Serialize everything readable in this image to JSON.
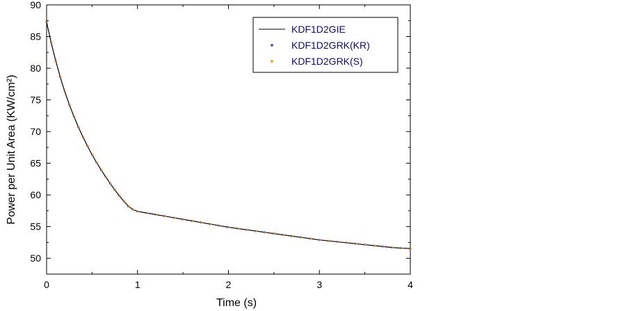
{
  "chart_data": {
    "type": "line",
    "title": "",
    "xlabel": "Time (s)",
    "ylabel": "Power per Unit Area  (KW/cm²)",
    "xlim": [
      0,
      4
    ],
    "ylim": [
      47.5,
      90
    ],
    "xticks": [
      0,
      1,
      2,
      3,
      4
    ],
    "yticks": [
      50,
      55,
      60,
      65,
      70,
      75,
      80,
      85,
      90
    ],
    "xtick_labels": [
      "0",
      "1",
      "2",
      "3",
      "4"
    ],
    "ytick_labels": [
      "50",
      "55",
      "60",
      "65",
      "70",
      "75",
      "80",
      "85",
      "90"
    ],
    "grid": false,
    "legend_position": "top-right",
    "x": [
      0,
      0.05,
      0.1,
      0.15,
      0.2,
      0.25,
      0.3,
      0.35,
      0.4,
      0.45,
      0.5,
      0.55,
      0.6,
      0.65,
      0.7,
      0.75,
      0.8,
      0.85,
      0.9,
      0.95,
      1.0,
      1.1,
      1.2,
      1.3,
      1.4,
      1.5,
      1.6,
      1.7,
      1.8,
      1.9,
      2.0,
      2.1,
      2.2,
      2.3,
      2.4,
      2.5,
      2.6,
      2.7,
      2.8,
      2.9,
      3.0,
      3.1,
      3.2,
      3.3,
      3.4,
      3.5,
      3.6,
      3.7,
      3.8,
      3.9,
      4.0
    ],
    "y": [
      87.3,
      84.05,
      81.2,
      78.6,
      76.3,
      74.25,
      72.4,
      70.7,
      69.15,
      67.7,
      66.35,
      65.1,
      63.95,
      62.85,
      61.8,
      60.8,
      59.85,
      59.0,
      58.2,
      57.7,
      57.4,
      57.15,
      56.9,
      56.65,
      56.4,
      56.15,
      55.9,
      55.65,
      55.4,
      55.15,
      54.9,
      54.7,
      54.5,
      54.3,
      54.1,
      53.9,
      53.7,
      53.5,
      53.3,
      53.1,
      52.9,
      52.75,
      52.6,
      52.45,
      52.3,
      52.15,
      52.0,
      51.85,
      51.7,
      51.6,
      51.55
    ],
    "series": [
      {
        "name": "KDF1D2GIE",
        "style": "line",
        "color": "#000000"
      },
      {
        "name": "KDF1D2GRK(KR)",
        "style": "dots",
        "color": "#1f3fbf"
      },
      {
        "name": "KDF1D2GRK(S)",
        "style": "dots",
        "color": "#f08c00"
      }
    ]
  }
}
